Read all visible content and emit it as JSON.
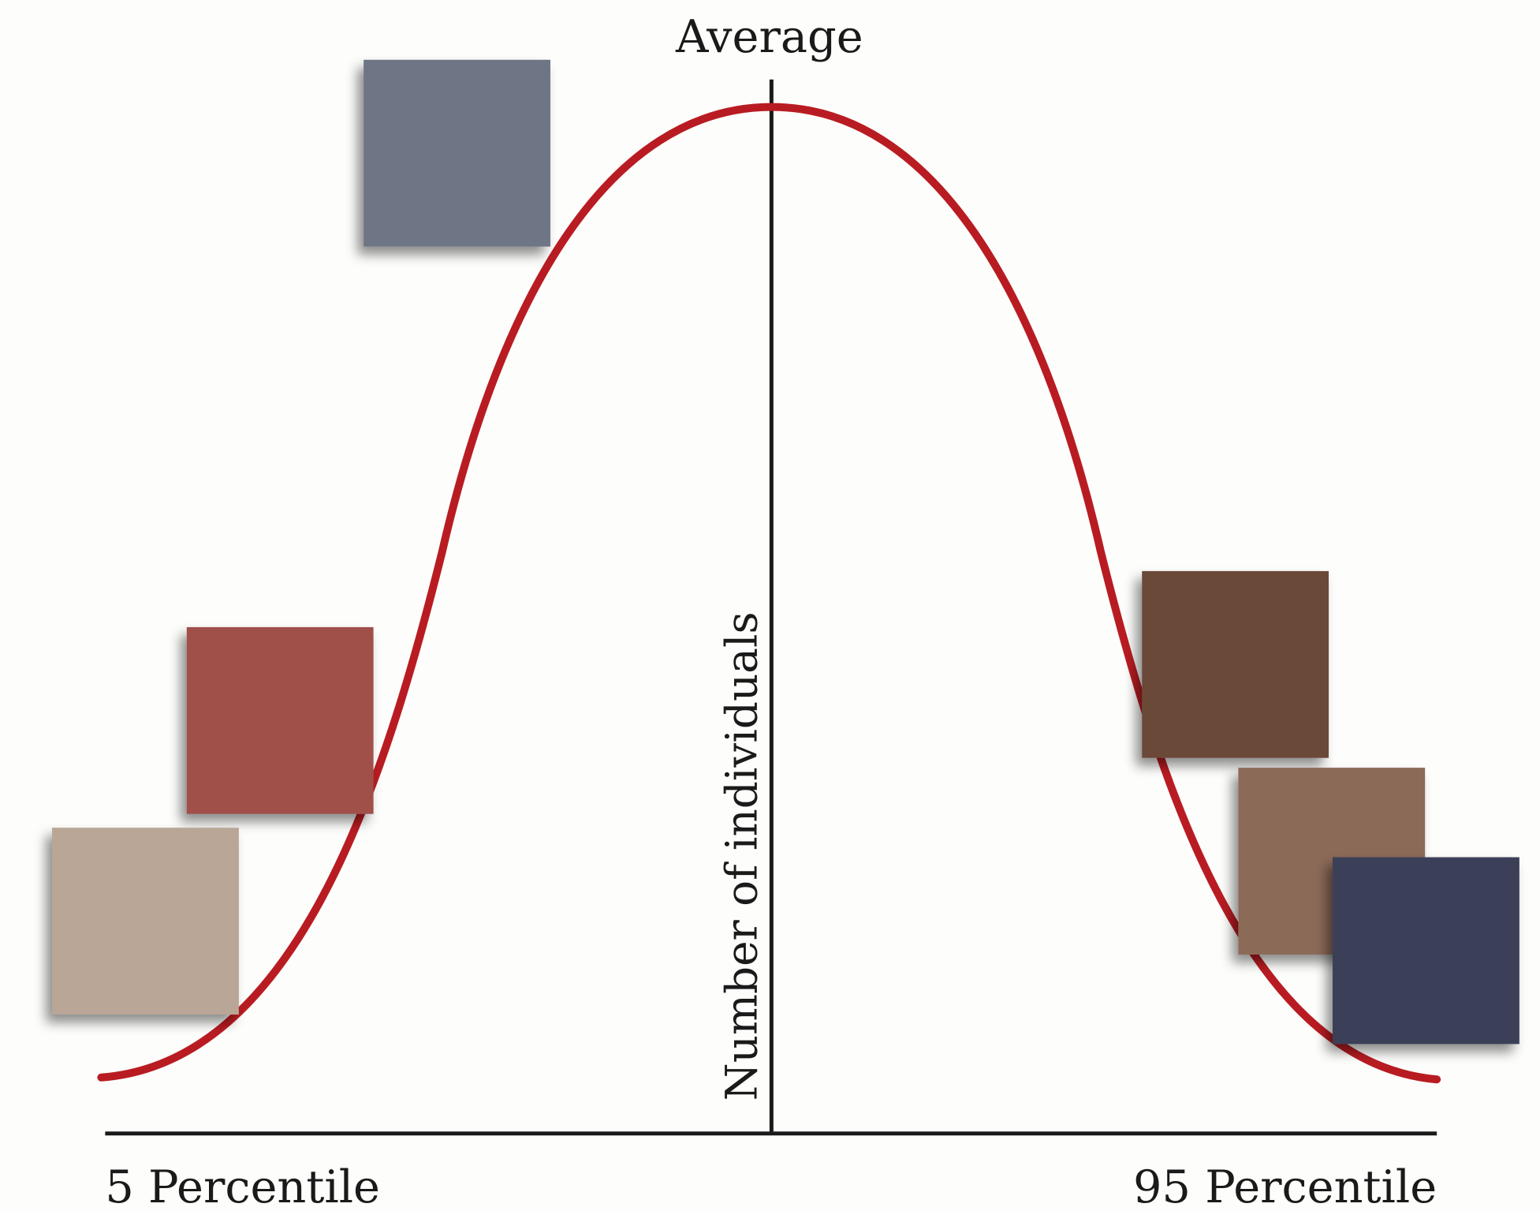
{
  "labels": {
    "top": "Average",
    "axis": "Number of individuals",
    "left": "5 Percentile",
    "right": "95 Percentile"
  }
}
